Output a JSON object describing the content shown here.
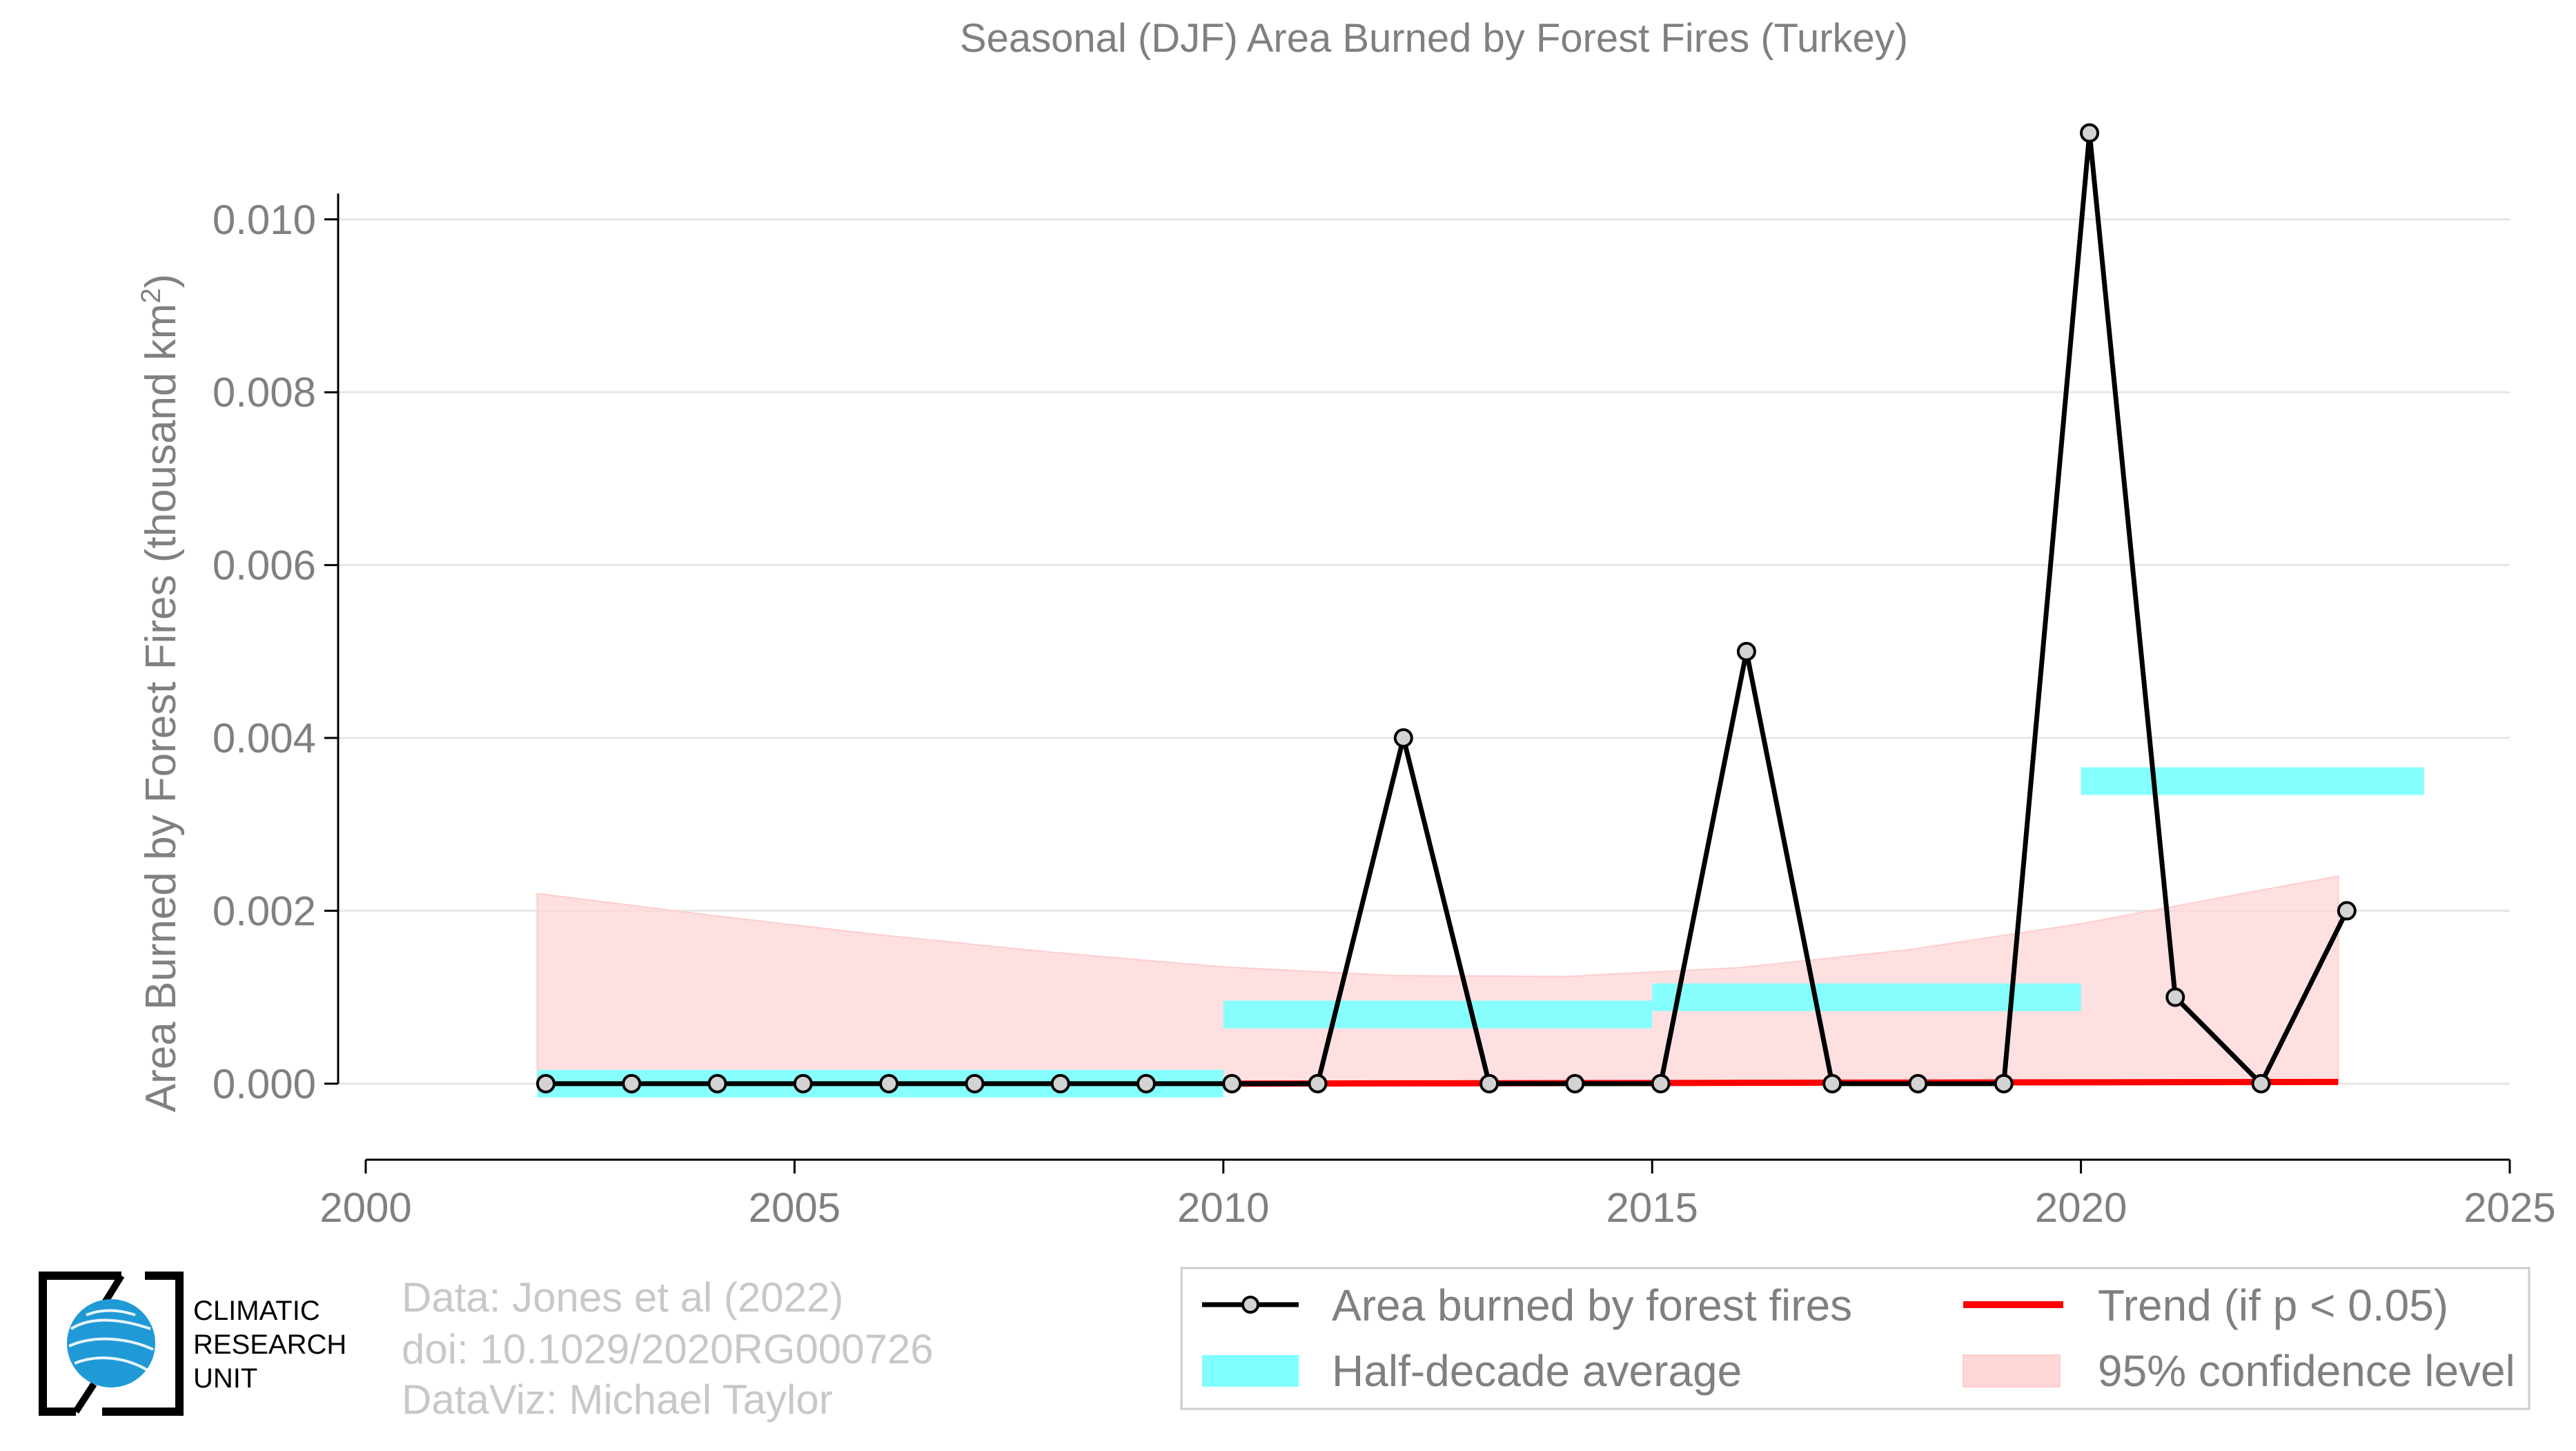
{
  "chart_data": {
    "type": "line",
    "title": "Seasonal (DJF) Area Burned by Forest Fires (Turkey)",
    "ylabel": "Area Burned by Forest Fires (thousand km",
    "ylabel_superscript": "2",
    "ylabel_close": ")",
    "xlim": [
      2000,
      2025
    ],
    "ylim": [
      -0.00088,
      0.0115
    ],
    "x_ticks": [
      2000,
      2005,
      2010,
      2015,
      2020,
      2025
    ],
    "y_ticks": [
      0.0,
      0.002,
      0.004,
      0.006,
      0.008,
      0.01
    ],
    "y_tick_labels": [
      "0.000",
      "0.002",
      "0.004",
      "0.006",
      "0.008",
      "0.010"
    ],
    "grid": "horizontal",
    "series": [
      {
        "name": "Area burned by forest fires",
        "color": "#000000",
        "marker_fill": "#d3d3d3",
        "x": [
          2002,
          2003,
          2004,
          2005,
          2006,
          2007,
          2008,
          2009,
          2010,
          2011,
          2012,
          2013,
          2014,
          2015,
          2016,
          2017,
          2018,
          2019,
          2020,
          2021,
          2022,
          2023
        ],
        "y": [
          0,
          0,
          0,
          0,
          0,
          0,
          0,
          0,
          0,
          0,
          0.004,
          0,
          0,
          0,
          0.005,
          0,
          0,
          0,
          0.011,
          0.001,
          0,
          0.002
        ]
      },
      {
        "name": "Half-decade average",
        "color": "#80ffff",
        "segments": [
          {
            "x0": 2002,
            "x1": 2010,
            "y": 0.0
          },
          {
            "x0": 2010,
            "x1": 2015,
            "y": 0.0008
          },
          {
            "x0": 2015,
            "x1": 2020,
            "y": 0.001
          },
          {
            "x0": 2020,
            "x1": 2024,
            "y": 0.0035
          }
        ]
      },
      {
        "name": "Trend (if p < 0.05)",
        "color": "#ff0000",
        "x": [
          2010,
          2023
        ],
        "y": [
          0.0,
          2e-05
        ]
      },
      {
        "name": "95% confidence level",
        "color": "#ffcccc",
        "x": [
          2002,
          2004,
          2006,
          2008,
          2010,
          2012,
          2014,
          2016,
          2018,
          2020,
          2022,
          2023
        ],
        "upper": [
          0.0022,
          0.00195,
          0.00172,
          0.00152,
          0.00135,
          0.00125,
          0.00124,
          0.00134,
          0.00155,
          0.00185,
          0.00222,
          0.0024
        ],
        "lower": [
          0.0,
          0.0,
          0.0,
          0.0,
          0.0,
          0.0,
          0.0,
          0.0,
          0.0,
          0.0,
          0.0,
          0.0
        ]
      }
    ],
    "legend": {
      "placement": "bottom-right",
      "entries": [
        "Area burned by forest fires",
        "Trend (if p < 0.05)",
        "Half-decade average",
        "95% confidence level"
      ]
    }
  },
  "credits": {
    "line1": "Data: Jones et al (2022)",
    "line2": "doi: 10.1029/2020RG000726",
    "line3": "DataViz: Michael Taylor"
  },
  "logo": {
    "line1": "CLIMATIC",
    "line2": "RESEARCH",
    "line3": "UNIT"
  }
}
